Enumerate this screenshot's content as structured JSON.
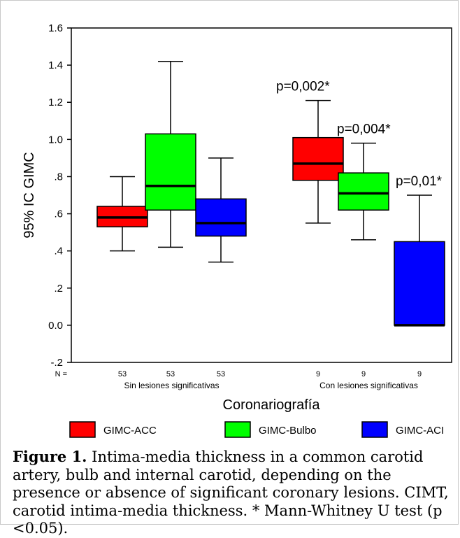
{
  "chart_data": {
    "type": "box",
    "ylabel": "95% IC GIMC",
    "xlabel": "Coronariografía",
    "ylim": [
      -0.2,
      1.6
    ],
    "yticks": [
      {
        "value": 1.6,
        "label": "1.6"
      },
      {
        "value": 1.4,
        "label": "1.4"
      },
      {
        "value": 1.2,
        "label": "1.2"
      },
      {
        "value": 1.0,
        "label": "1.0"
      },
      {
        "value": 0.8,
        "label": ".8"
      },
      {
        "value": 0.6,
        "label": ".6"
      },
      {
        "value": 0.4,
        "label": ".4"
      },
      {
        "value": 0.2,
        "label": ".2"
      },
      {
        "value": 0.0,
        "label": "0.0"
      },
      {
        "value": -0.2,
        "label": "-.2"
      }
    ],
    "n_label": "N =",
    "groups": [
      {
        "label": "Sin lesiones significativas",
        "boxes": [
          {
            "series": "GIMC-ACC",
            "n": "53",
            "min": 0.4,
            "q1": 0.53,
            "median": 0.58,
            "q3": 0.64,
            "max": 0.8,
            "annotation": ""
          },
          {
            "series": "GIMC-Bulbo",
            "n": "53",
            "min": 0.42,
            "q1": 0.62,
            "median": 0.75,
            "q3": 1.03,
            "max": 1.42,
            "annotation": ""
          },
          {
            "series": "GIMC-ACI",
            "n": "53",
            "min": 0.34,
            "q1": 0.48,
            "median": 0.55,
            "q3": 0.68,
            "max": 0.9,
            "annotation": ""
          }
        ]
      },
      {
        "label": "Con lesiones significativas",
        "boxes": [
          {
            "series": "GIMC-ACC",
            "n": "9",
            "min": 0.55,
            "q1": 0.78,
            "median": 0.87,
            "q3": 1.01,
            "max": 1.21,
            "annotation": "p=0,002*"
          },
          {
            "series": "GIMC-Bulbo",
            "n": "9",
            "min": 0.46,
            "q1": 0.62,
            "median": 0.71,
            "q3": 0.82,
            "max": 0.98,
            "annotation": "p=0,004*"
          },
          {
            "series": "GIMC-ACI",
            "n": "9",
            "min": 0.0,
            "q1": 0.0,
            "median": 0.0,
            "q3": 0.45,
            "max": 0.7,
            "annotation": "p=0,01*"
          }
        ]
      }
    ],
    "series": [
      {
        "name": "GIMC-ACC",
        "color": "#ff0000"
      },
      {
        "name": "GIMC-Bulbo",
        "color": "#00ff00"
      },
      {
        "name": "GIMC-ACI",
        "color": "#0000ff"
      }
    ],
    "legend_position": "bottom"
  },
  "caption": {
    "label": "Figure 1.",
    "text": " Intima-media thickness in a common carotid artery, bulb and internal carotid, depending on the presence or absence of significant coronary lesions. CIMT, carotid intima-media thickness. * Mann-Whitney U test (p <0.05)."
  }
}
